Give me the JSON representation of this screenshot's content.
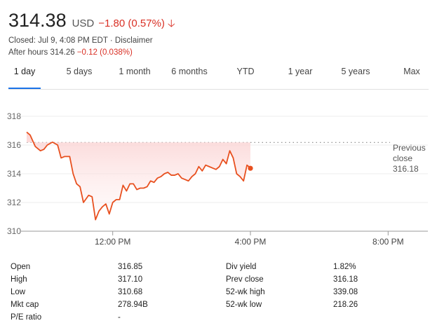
{
  "header": {
    "price": "314.38",
    "currency": "USD",
    "change": "−1.80 (0.57%)",
    "closed_text": "Closed: Jul 9, 4:08 PM EDT · Disclaimer",
    "after_hours_label": "After hours 314.26",
    "after_hours_change": "−0.12 (0.038%)",
    "down_color": "#d93025"
  },
  "tabs": [
    "1 day",
    "5 days",
    "1 month",
    "6 months",
    "YTD",
    "1 year",
    "5 years",
    "Max"
  ],
  "active_tab": 0,
  "chart_data": {
    "type": "line",
    "y_ticks": [
      "318",
      "316",
      "314",
      "312",
      "310"
    ],
    "ylim": [
      310,
      318
    ],
    "x_ticks": [
      "12:00 PM",
      "4:00 PM",
      "8:00 PM"
    ],
    "previous_close": {
      "label_lines": [
        "Previous",
        "close",
        "316.18"
      ],
      "value": 316.18
    },
    "line_color": "#e8501f",
    "series": [
      {
        "x": [
          9.5,
          9.6,
          9.75,
          9.9,
          10.0,
          10.1,
          10.25,
          10.4,
          10.5,
          10.6,
          10.75,
          10.85,
          10.95,
          11.05,
          11.15,
          11.3,
          11.4,
          11.5,
          11.6,
          11.7,
          11.8,
          11.9,
          12.0,
          12.1,
          12.2,
          12.3,
          12.4,
          12.5,
          12.6,
          12.7,
          12.8,
          12.9,
          13.0,
          13.1,
          13.2,
          13.3,
          13.4,
          13.5,
          13.6,
          13.7,
          13.8,
          13.9,
          14.0,
          14.1,
          14.2,
          14.3,
          14.4,
          14.5,
          14.6,
          14.7,
          14.8,
          14.9,
          15.0,
          15.1,
          15.2,
          15.3,
          15.4,
          15.5,
          15.6,
          15.7,
          15.8,
          15.9,
          16.0
        ],
        "values": [
          316.9,
          316.7,
          315.9,
          315.6,
          315.7,
          316.0,
          316.2,
          316.0,
          315.1,
          315.2,
          315.2,
          314.0,
          313.3,
          313.1,
          312.0,
          312.5,
          312.4,
          310.8,
          311.4,
          311.7,
          311.9,
          311.2,
          312.0,
          312.2,
          312.2,
          313.2,
          312.8,
          313.3,
          313.3,
          312.9,
          313.0,
          313.0,
          313.1,
          313.5,
          313.4,
          313.7,
          313.8,
          314.0,
          314.1,
          313.9,
          313.9,
          314.0,
          313.7,
          313.6,
          313.5,
          313.8,
          314.0,
          314.5,
          314.2,
          314.6,
          314.5,
          314.4,
          314.3,
          314.5,
          315.0,
          314.7,
          315.6,
          315.1,
          314.0,
          313.8,
          313.5,
          314.6,
          314.4
        ]
      }
    ],
    "last_point": 314.38
  },
  "stats": {
    "left": [
      {
        "label": "Open",
        "value": "316.85"
      },
      {
        "label": "High",
        "value": "317.10"
      },
      {
        "label": "Low",
        "value": "310.68"
      },
      {
        "label": "Mkt cap",
        "value": "278.94B"
      },
      {
        "label": "P/E ratio",
        "value": "-"
      }
    ],
    "right": [
      {
        "label": "Div yield",
        "value": "1.82%"
      },
      {
        "label": "Prev close",
        "value": "316.18"
      },
      {
        "label": "52-wk high",
        "value": "339.08"
      },
      {
        "label": "52-wk low",
        "value": "218.26"
      }
    ]
  }
}
